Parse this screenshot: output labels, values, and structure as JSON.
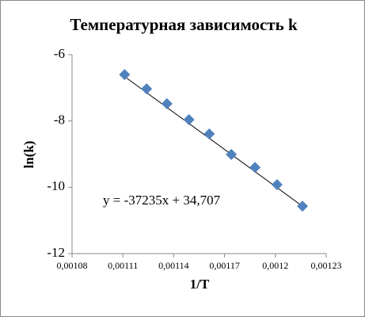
{
  "chart_data": {
    "type": "scatter",
    "title": "Температурная зависимость k",
    "x_label": "1/T",
    "y_label": "ln(k)",
    "series": [
      {
        "name": "ln(k)",
        "color": "#4f81bd",
        "x": [
          0.001111,
          0.001124,
          0.001136,
          0.001149,
          0.001161,
          0.001174,
          0.001188,
          0.001201,
          0.001216
        ],
        "values": [
          -6.6,
          -7.03,
          -7.48,
          -7.96,
          -8.39,
          -9.01,
          -9.4,
          -9.92,
          -10.57
        ]
      }
    ],
    "trendline": {
      "slope": -37235,
      "intercept": 34.707,
      "label": "y = -37235x + 34,707",
      "color": "#000000"
    },
    "xlim": [
      0.00108,
      0.00123
    ],
    "xticks": [
      {
        "value": 0.00108,
        "label": "0,00108"
      },
      {
        "value": 0.00111,
        "label": "0,00111"
      },
      {
        "value": 0.00114,
        "label": "0,00114"
      },
      {
        "value": 0.00117,
        "label": "0,00117"
      },
      {
        "value": 0.0012,
        "label": "0,0012"
      },
      {
        "value": 0.00123,
        "label": "0,00123"
      }
    ],
    "ylim": [
      -12,
      -6
    ],
    "yticks": [
      -12,
      -10,
      -8,
      -6
    ],
    "grid": false
  }
}
